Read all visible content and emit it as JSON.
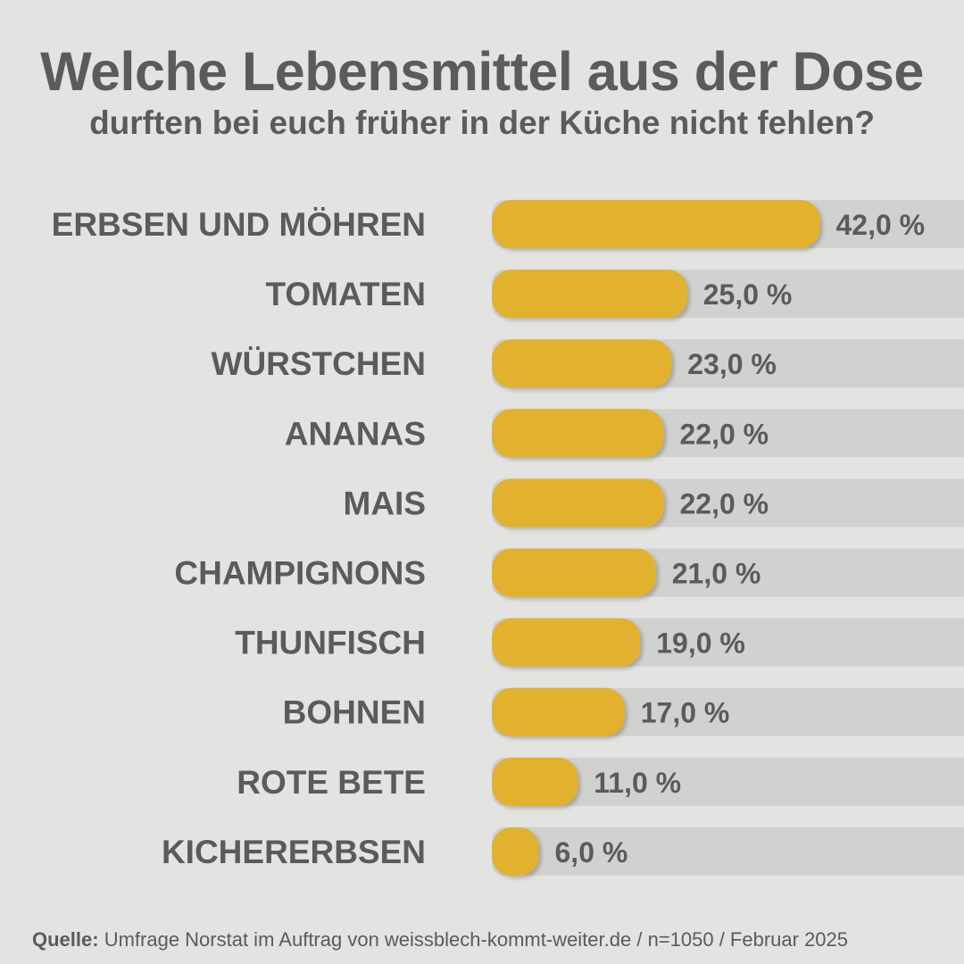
{
  "chart_data": {
    "type": "bar",
    "orientation": "horizontal",
    "title": "Welche Lebensmittel aus der Dose",
    "subtitle": "durften bei euch früher in der Küche nicht fehlen?",
    "categories": [
      "ERBSEN UND MÖHREN",
      "TOMATEN",
      "WÜRSTCHEN",
      "ANANAS",
      "MAIS",
      "CHAMPIGNONS",
      "THUNFISCH",
      "BOHNEN",
      "ROTE BETE",
      "KICHERERBSEN"
    ],
    "values": [
      42.0,
      25.0,
      23.0,
      22.0,
      22.0,
      21.0,
      19.0,
      17.0,
      11.0,
      6.0
    ],
    "value_labels": [
      "42,0 %",
      "25,0 %",
      "23,0 %",
      "22,0 %",
      "22,0 %",
      "21,0 %",
      "19,0 %",
      "17,0 %",
      "11,0 %",
      "6,0 %"
    ],
    "unit": "%",
    "grid": false,
    "legend": "none",
    "colors": {
      "bar": "#e2b12e",
      "track": "#d1d1cf",
      "text": "#595b5e",
      "background": "#e3e3e1"
    }
  },
  "source": {
    "label": "Quelle:",
    "text": " Umfrage Norstat im Auftrag von weissblech-kommt-weiter.de / n=1050 / Februar 2025"
  }
}
